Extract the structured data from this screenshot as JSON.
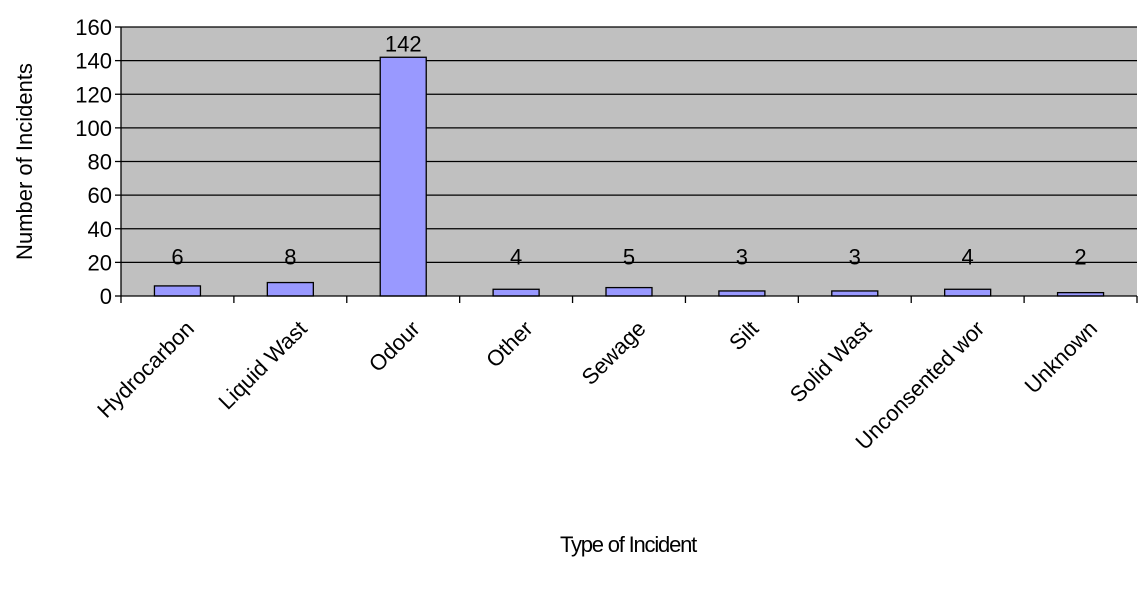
{
  "chart_data": {
    "type": "bar",
    "title": "",
    "xlabel": "Type of Incident",
    "ylabel": "Number of Incidents",
    "categories": [
      "Hydrocarbons",
      "Liquid Waste",
      "Odour",
      "Other",
      "Sewage",
      "Silt",
      "Solid Waste",
      "Unconsented works",
      "Unknown"
    ],
    "category_labels_visible": [
      "Hydrocarbon",
      "Liquid Wast",
      "Odour",
      "Other",
      "Sewage",
      "Silt",
      "Solid Wast",
      "Unconsented wor",
      "Unknown"
    ],
    "values": [
      6,
      8,
      142,
      4,
      5,
      3,
      3,
      4,
      2
    ],
    "ylim": [
      0,
      160
    ],
    "yticks": [
      0,
      20,
      40,
      60,
      80,
      100,
      120,
      140,
      160
    ],
    "grid": true,
    "colors": {
      "plot_background": "#c0c0c0",
      "bar_fill": "#9999ff",
      "bar_stroke": "#000000",
      "gridline": "#000000"
    }
  }
}
